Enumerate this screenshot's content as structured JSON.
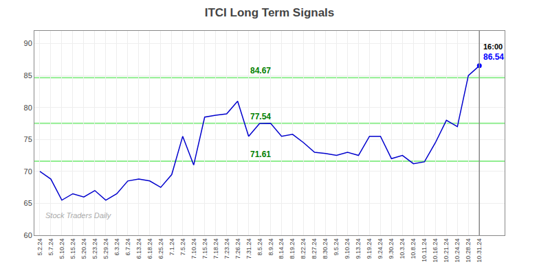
{
  "chart_data": {
    "type": "line",
    "title": "ITCI Long Term Signals",
    "categories": [
      "5.2.24",
      "5.7.24",
      "5.10.24",
      "5.15.24",
      "5.20.24",
      "5.23.24",
      "5.29.24",
      "6.3.24",
      "6.7.24",
      "6.13.24",
      "6.18.24",
      "6.25.24",
      "7.1.24",
      "7.5.24",
      "7.10.24",
      "7.15.24",
      "7.18.24",
      "7.23.24",
      "7.26.24",
      "7.31.24",
      "8.5.24",
      "8.9.24",
      "8.14.24",
      "8.19.24",
      "8.22.24",
      "8.27.24",
      "8.30.24",
      "9.5.24",
      "9.10.24",
      "9.13.24",
      "9.19.24",
      "9.24.24",
      "9.30.24",
      "10.3.24",
      "10.8.24",
      "10.11.24",
      "10.16.24",
      "10.21.24",
      "10.24.24",
      "10.28.24",
      "10.31.24"
    ],
    "values": [
      70.0,
      68.8,
      65.5,
      66.5,
      66.0,
      67.0,
      65.5,
      66.5,
      68.5,
      68.8,
      68.5,
      67.5,
      69.5,
      75.5,
      71.0,
      78.5,
      78.8,
      79.0,
      81.0,
      75.5,
      77.5,
      77.54,
      75.5,
      75.8,
      74.5,
      73.0,
      72.8,
      72.5,
      73.0,
      72.5,
      75.5,
      75.5,
      72.0,
      72.5,
      71.2,
      71.5,
      74.5,
      78.0,
      77.0,
      85.0,
      86.54
    ],
    "color": "#0000CD",
    "ylim": [
      60,
      92
    ],
    "yticks": [
      60,
      65,
      70,
      75,
      80,
      85,
      90
    ],
    "grid": true,
    "reference_lines": [
      {
        "value": 84.67,
        "label": "84.67"
      },
      {
        "value": 77.54,
        "label": "77.54"
      },
      {
        "value": 71.61,
        "label": "71.61"
      }
    ],
    "reference_line_color": "#90EE90",
    "reference_label_color": "#008000",
    "last_point": {
      "time_label": "16:00",
      "value": 86.54,
      "color": "#0000FF",
      "line_color": "#888888"
    },
    "watermark": {
      "text": "Stock Traders Daily",
      "color": "#AAAAAA"
    }
  }
}
